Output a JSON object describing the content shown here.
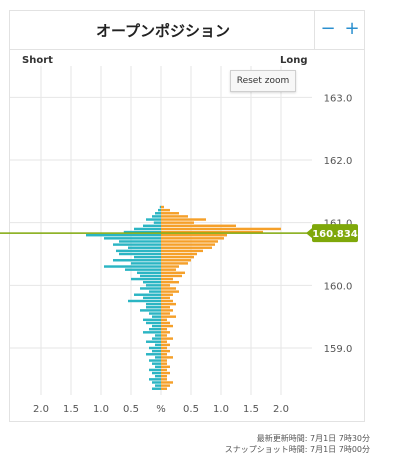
{
  "header": {
    "title": "オープンポジション",
    "zoom_out_label": "−",
    "zoom_in_label": "+"
  },
  "labels": {
    "short": "Short",
    "long": "Long",
    "reset_zoom": "Reset zoom"
  },
  "footer": {
    "last_updated": "最新更新時間: 7月1日 7時30分",
    "snapshot": "スナップショット時間: 7月1日 7時00分"
  },
  "colors": {
    "short": "#2bb5c3",
    "long": "#f5a02a",
    "price_line": "#7fa80a",
    "grid": "#e6e6e6"
  },
  "chart_data": {
    "type": "bar",
    "title": "オープンポジション",
    "current_price": {
      "value": 160.834,
      "label": "160.834"
    },
    "y_axis": {
      "range": [
        158.25,
        163.5
      ],
      "ticks": [
        163.0,
        162.0,
        161.0,
        160.0,
        159.0
      ],
      "tick_labels": [
        "163.0",
        "162.0",
        "161.0",
        "160.0",
        "159.0"
      ]
    },
    "x_axis": {
      "range": [
        -2.4,
        2.4
      ],
      "tick_values": [
        -2.0,
        -1.5,
        -1.0,
        -0.5,
        0,
        0.5,
        1.0,
        1.5,
        2.0
      ],
      "tick_labels": [
        "2.0",
        "1.5",
        "1.0",
        "0.5",
        "%",
        "0.5",
        "1.0",
        "1.5",
        "2.0"
      ]
    },
    "bin_size": 0.05,
    "series": [
      {
        "name": "Short",
        "prices": [
          161.25,
          161.2,
          161.15,
          161.1,
          161.05,
          161.0,
          160.95,
          160.9,
          160.85,
          160.8,
          160.75,
          160.7,
          160.65,
          160.6,
          160.55,
          160.5,
          160.45,
          160.4,
          160.35,
          160.3,
          160.25,
          160.2,
          160.15,
          160.1,
          160.05,
          160.0,
          159.95,
          159.9,
          159.85,
          159.8,
          159.75,
          159.7,
          159.65,
          159.6,
          159.55,
          159.5,
          159.45,
          159.4,
          159.35,
          159.3,
          159.25,
          159.2,
          159.15,
          159.1,
          159.05,
          159.0,
          158.95,
          158.9,
          158.85,
          158.8,
          158.75,
          158.7,
          158.65,
          158.6,
          158.55,
          158.5,
          158.45,
          158.4,
          158.35
        ],
        "values": [
          0.02,
          0.05,
          0.1,
          0.15,
          0.25,
          0.12,
          0.3,
          0.45,
          0.62,
          1.25,
          0.95,
          0.7,
          0.8,
          0.55,
          0.75,
          0.7,
          0.45,
          0.8,
          0.5,
          0.95,
          0.6,
          0.4,
          0.35,
          0.5,
          0.3,
          0.25,
          0.35,
          0.2,
          0.45,
          0.3,
          0.55,
          0.25,
          0.25,
          0.35,
          0.2,
          0.15,
          0.3,
          0.25,
          0.15,
          0.2,
          0.3,
          0.1,
          0.15,
          0.25,
          0.1,
          0.2,
          0.15,
          0.25,
          0.1,
          0.2,
          0.15,
          0.1,
          0.2,
          0.15,
          0.1,
          0.2,
          0.15,
          0.1,
          0.15
        ]
      },
      {
        "name": "Long",
        "prices": [
          161.25,
          161.2,
          161.15,
          161.1,
          161.05,
          161.0,
          160.95,
          160.9,
          160.85,
          160.8,
          160.75,
          160.7,
          160.65,
          160.6,
          160.55,
          160.5,
          160.45,
          160.4,
          160.35,
          160.3,
          160.25,
          160.2,
          160.15,
          160.1,
          160.05,
          160.0,
          159.95,
          159.9,
          159.85,
          159.8,
          159.75,
          159.7,
          159.65,
          159.6,
          159.55,
          159.5,
          159.45,
          159.4,
          159.35,
          159.3,
          159.25,
          159.2,
          159.15,
          159.1,
          159.05,
          159.0,
          158.95,
          158.9,
          158.85,
          158.8,
          158.75,
          158.7,
          158.65,
          158.6,
          158.55,
          158.5,
          158.45,
          158.4,
          158.35
        ],
        "values": [
          0.05,
          0.15,
          0.3,
          0.45,
          0.75,
          0.55,
          1.25,
          2.0,
          1.7,
          1.1,
          1.05,
          0.95,
          0.9,
          0.85,
          0.7,
          0.6,
          0.55,
          0.5,
          0.45,
          0.3,
          0.25,
          0.4,
          0.35,
          0.2,
          0.3,
          0.15,
          0.25,
          0.3,
          0.2,
          0.15,
          0.2,
          0.25,
          0.15,
          0.2,
          0.15,
          0.25,
          0.1,
          0.15,
          0.2,
          0.1,
          0.15,
          0.1,
          0.2,
          0.1,
          0.15,
          0.1,
          0.15,
          0.1,
          0.2,
          0.1,
          0.1,
          0.15,
          0.1,
          0.15,
          0.1,
          0.1,
          0.2,
          0.15,
          0.1
        ]
      }
    ]
  }
}
